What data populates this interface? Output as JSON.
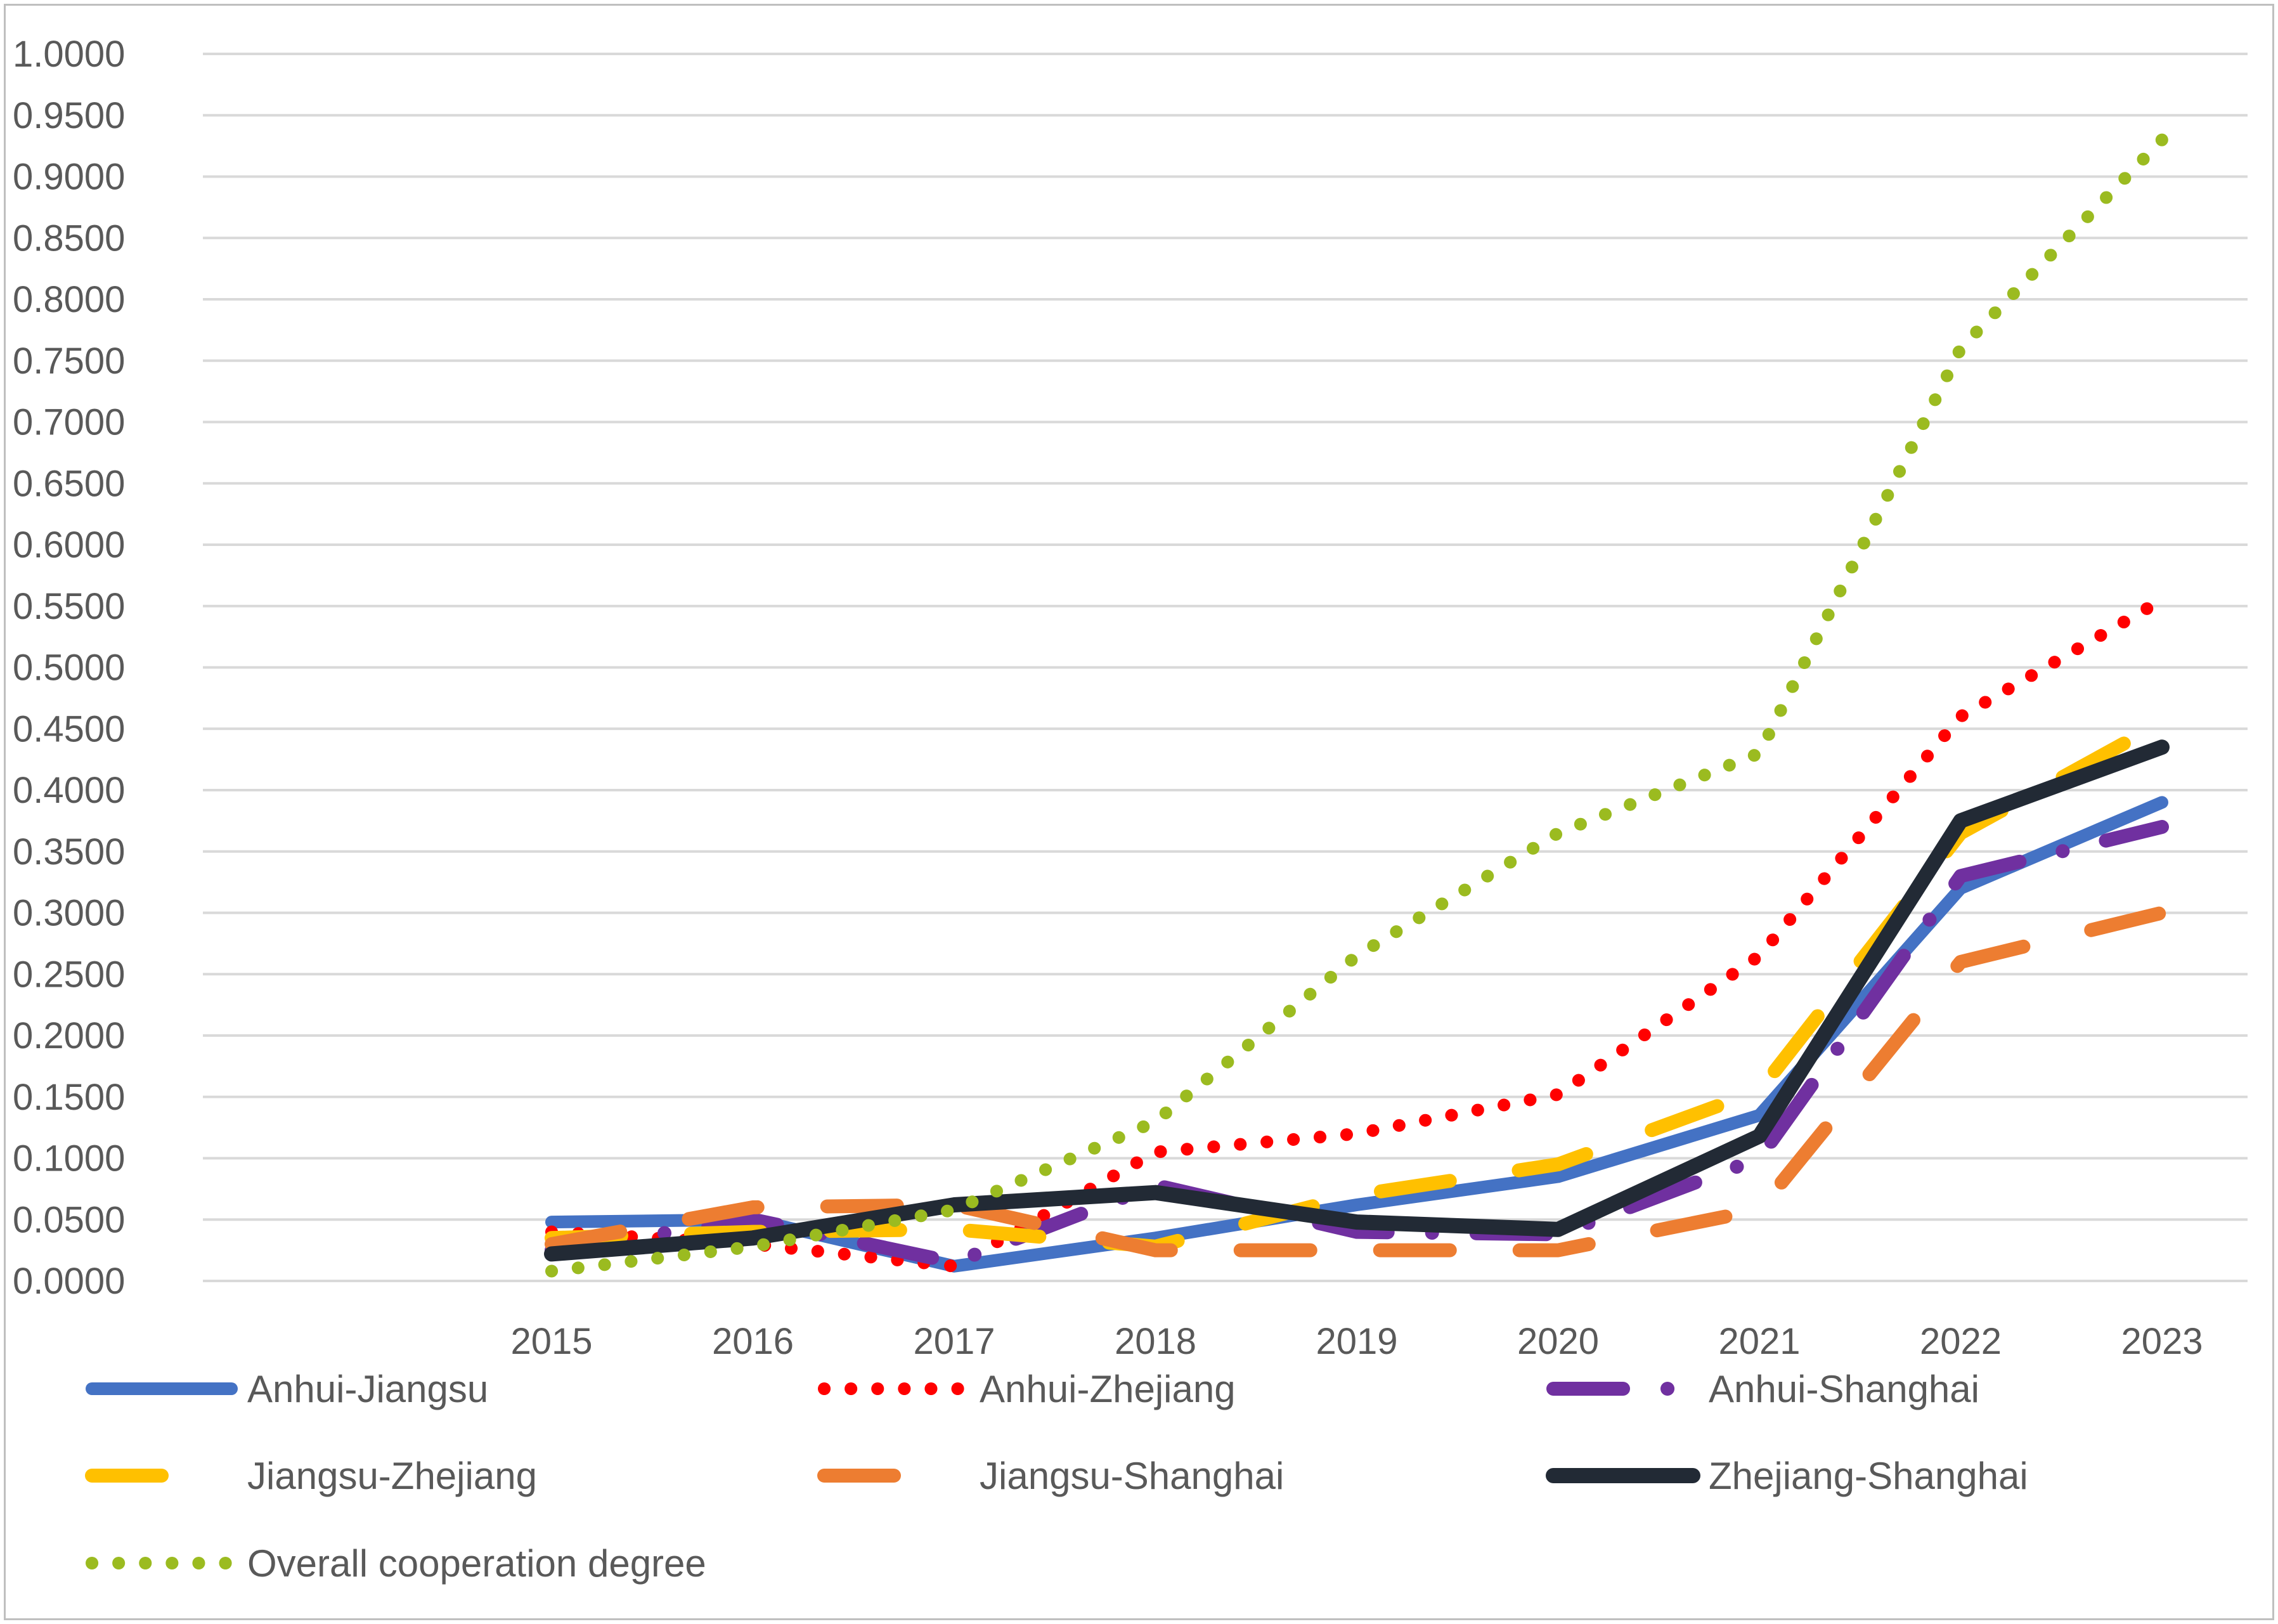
{
  "chart_data": {
    "type": "line",
    "title": "",
    "xlabel": "",
    "ylabel": "",
    "categories": [
      "2015",
      "2016",
      "2017",
      "2018",
      "2019",
      "2020",
      "2021",
      "2022",
      "2023"
    ],
    "ylim": [
      0,
      1.0
    ],
    "ytick_step": 0.05,
    "ytick_labels": [
      "0.0000",
      "0.0500",
      "0.1000",
      "0.1500",
      "0.2000",
      "0.2500",
      "0.3000",
      "0.3500",
      "0.4000",
      "0.4500",
      "0.5000",
      "0.5500",
      "0.6000",
      "0.6500",
      "0.7000",
      "0.7500",
      "0.8000",
      "0.8500",
      "0.9000",
      "0.9500",
      "1.0000"
    ],
    "grid": true,
    "legend_position": "bottom",
    "series": [
      {
        "name": "Anhui-Jiangsu",
        "values": [
          0.048,
          0.05,
          0.012,
          0.035,
          0.062,
          0.085,
          0.135,
          0.32,
          0.39
        ],
        "color": "#4472c4",
        "style": "solid"
      },
      {
        "name": "Anhui-Zhejiang",
        "values": [
          0.04,
          0.03,
          0.012,
          0.105,
          0.12,
          0.152,
          0.265,
          0.46,
          0.555
        ],
        "color": "#ff0000",
        "style": "round-dot"
      },
      {
        "name": "Anhui-Shanghai",
        "values": [
          0.025,
          0.05,
          0.015,
          0.078,
          0.04,
          0.038,
          0.1,
          0.33,
          0.37
        ],
        "color": "#7030a0",
        "style": "long-dash-dot"
      },
      {
        "name": "Jiangsu-Zhejiang",
        "values": [
          0.035,
          0.04,
          0.042,
          0.028,
          0.07,
          0.095,
          0.155,
          0.365,
          0.455
        ],
        "color": "#ffc000",
        "style": "long-dash"
      },
      {
        "name": "Jiangsu-Shanghai",
        "values": [
          0.03,
          0.06,
          0.062,
          0.025,
          0.025,
          0.025,
          0.058,
          0.26,
          0.3
        ],
        "color": "#ed7d31",
        "style": "long-dash"
      },
      {
        "name": "Zhejiang-Shanghai",
        "values": [
          0.022,
          0.035,
          0.062,
          0.072,
          0.048,
          0.042,
          0.118,
          0.375,
          0.435
        ],
        "color": "#222a35",
        "style": "solid-thick"
      },
      {
        "name": "Overall cooperation degree",
        "values": [
          0.008,
          0.028,
          0.058,
          0.13,
          0.265,
          0.365,
          0.43,
          0.76,
          0.93
        ],
        "color": "#9bbb20",
        "style": "round-dot"
      }
    ]
  }
}
